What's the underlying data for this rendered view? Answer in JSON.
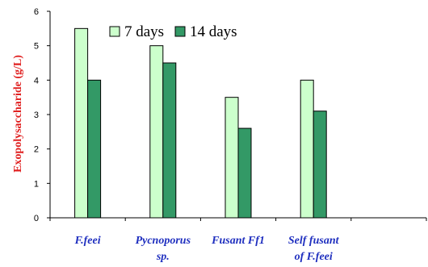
{
  "chart_data": {
    "type": "bar",
    "title": "",
    "xlabel": "",
    "ylabel": "Exopolysaccharide (g/L)",
    "ylim": [
      0,
      6
    ],
    "yticks": [
      0,
      1,
      2,
      3,
      4,
      5,
      6
    ],
    "categories": [
      [
        "F.feei"
      ],
      [
        "Pycnoporus",
        "sp."
      ],
      [
        "Fusant Ff1"
      ],
      [
        "Self fusant",
        "of F.feei"
      ],
      [
        ""
      ]
    ],
    "series": [
      {
        "name": "7 days",
        "values": [
          5.5,
          5.0,
          3.5,
          4.0,
          null
        ],
        "color": "#ccffcc"
      },
      {
        "name": "14 days",
        "values": [
          4.0,
          4.5,
          2.6,
          3.1,
          null
        ],
        "color": "#339966"
      }
    ],
    "legend_position": "top-center",
    "grid": false,
    "colors": {
      "ylabel": "#e02020",
      "category_labels": "#1f2fbf",
      "axis": "#000000"
    }
  }
}
